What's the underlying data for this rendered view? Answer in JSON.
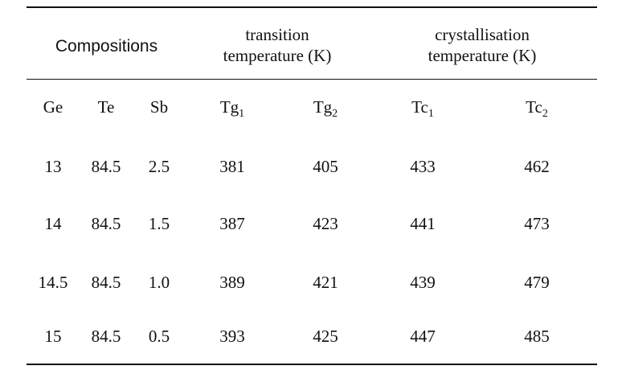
{
  "table": {
    "group_headers": {
      "compositions": "Compositions",
      "transition_line1": "transition",
      "transition_line2": "temperature (K)",
      "crystallisation_line1": "crystallisation",
      "crystallisation_line2": "temperature (K)"
    },
    "columns": [
      {
        "base": "Ge",
        "sub": ""
      },
      {
        "base": "Te",
        "sub": ""
      },
      {
        "base": "Sb",
        "sub": ""
      },
      {
        "base": "Tg",
        "sub": "1"
      },
      {
        "base": "Tg",
        "sub": "2"
      },
      {
        "base": "Tc",
        "sub": "1"
      },
      {
        "base": "Tc",
        "sub": "2"
      }
    ],
    "rows": [
      [
        "13",
        "84.5",
        "2.5",
        "381",
        "405",
        "433",
        "462"
      ],
      [
        "14",
        "84.5",
        "1.5",
        "387",
        "423",
        "441",
        "473"
      ],
      [
        "14.5",
        "84.5",
        "1.0",
        "389",
        "421",
        "439",
        "479"
      ],
      [
        "15",
        "84.5",
        "0.5",
        "393",
        "425",
        "447",
        "485"
      ]
    ]
  }
}
